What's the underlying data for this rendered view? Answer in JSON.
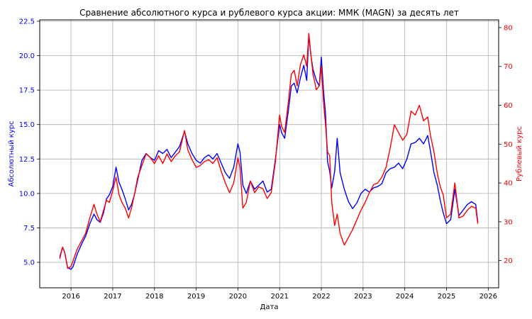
{
  "chart_data": {
    "type": "line",
    "title": "Сравнение абсолютного курса и рублевого курса акции: ММК (MAGN) за десять лет",
    "xlabel": "Дата",
    "ylabel_left": "Абсолютный курс",
    "ylabel_right": "Рублевый курс",
    "xlim": [
      2015.25,
      2026.25
    ],
    "ylim_left": [
      3.15,
      22.6
    ],
    "ylim_right": [
      13,
      82
    ],
    "xticks": [
      2016,
      2017,
      2018,
      2019,
      2020,
      2021,
      2022,
      2023,
      2024,
      2025,
      2026
    ],
    "xtick_labels": [
      "2016",
      "2017",
      "2018",
      "2019",
      "2020",
      "2021",
      "2022",
      "2023",
      "2024",
      "2025",
      "2026"
    ],
    "yticks_left": [
      5.0,
      7.5,
      10.0,
      12.5,
      15.0,
      17.5,
      20.0,
      22.5
    ],
    "ytick_labels_left": [
      "5.0",
      "7.5",
      "10.0",
      "12.5",
      "15.0",
      "17.5",
      "20.0",
      "22.5"
    ],
    "yticks_right": [
      20,
      30,
      40,
      50,
      60,
      70,
      80
    ],
    "ytick_labels_right": [
      "20",
      "30",
      "40",
      "50",
      "60",
      "70",
      "80"
    ],
    "grid": true,
    "series": [
      {
        "axis": "left",
        "color": "#0000ff",
        "x": [
          2015.73,
          2015.8,
          2015.85,
          2015.92,
          2016.0,
          2016.05,
          2016.15,
          2016.25,
          2016.35,
          2016.45,
          2016.55,
          2016.62,
          2016.7,
          2016.78,
          2016.85,
          2016.92,
          2017.0,
          2017.08,
          2017.15,
          2017.22,
          2017.3,
          2017.38,
          2017.45,
          2017.52,
          2017.6,
          2017.7,
          2017.8,
          2017.9,
          2018.0,
          2018.1,
          2018.2,
          2018.3,
          2018.4,
          2018.5,
          2018.6,
          2018.72,
          2018.8,
          2018.9,
          2019.0,
          2019.1,
          2019.2,
          2019.3,
          2019.4,
          2019.5,
          2019.6,
          2019.7,
          2019.8,
          2019.9,
          2020.0,
          2020.05,
          2020.12,
          2020.2,
          2020.3,
          2020.4,
          2020.5,
          2020.6,
          2020.7,
          2020.8,
          2020.9,
          2021.0,
          2021.05,
          2021.12,
          2021.2,
          2021.28,
          2021.35,
          2021.42,
          2021.5,
          2021.58,
          2021.65,
          2021.7,
          2021.75,
          2021.8,
          2021.88,
          2021.95,
          2022.0,
          2022.05,
          2022.1,
          2022.15,
          2022.2,
          2022.25,
          2022.32,
          2022.38,
          2022.45,
          2022.55,
          2022.65,
          2022.75,
          2022.85,
          2022.95,
          2023.05,
          2023.15,
          2023.25,
          2023.35,
          2023.45,
          2023.55,
          2023.65,
          2023.75,
          2023.85,
          2023.95,
          2024.05,
          2024.15,
          2024.25,
          2024.35,
          2024.45,
          2024.55,
          2024.62,
          2024.7,
          2024.78,
          2024.85,
          2024.92,
          2025.0,
          2025.1,
          2025.2,
          2025.3,
          2025.4,
          2025.5,
          2025.6,
          2025.7,
          2025.75
        ],
        "values": [
          5.4,
          6.1,
          5.7,
          4.6,
          4.5,
          4.7,
          5.6,
          6.3,
          6.9,
          7.8,
          8.5,
          8.1,
          7.9,
          8.6,
          9.6,
          9.9,
          10.5,
          11.9,
          10.8,
          10.3,
          9.6,
          8.8,
          9.2,
          9.9,
          11.0,
          12.4,
          12.9,
          12.6,
          12.4,
          13.1,
          12.9,
          13.2,
          12.6,
          13.0,
          13.4,
          14.5,
          13.6,
          12.9,
          12.4,
          12.2,
          12.6,
          12.8,
          12.5,
          12.9,
          12.2,
          11.5,
          11.1,
          11.9,
          13.6,
          13.0,
          10.6,
          10.0,
          10.9,
          10.3,
          10.6,
          10.9,
          10.1,
          10.3,
          12.5,
          15.0,
          14.4,
          14.0,
          15.8,
          17.8,
          18.0,
          17.3,
          18.4,
          19.3,
          18.2,
          21.5,
          20.0,
          19.0,
          18.2,
          17.8,
          19.9,
          17.5,
          15.8,
          12.3,
          11.6,
          10.4,
          11.6,
          14.0,
          11.5,
          10.3,
          9.4,
          8.9,
          9.3,
          10.0,
          10.3,
          10.1,
          10.4,
          10.5,
          10.7,
          11.5,
          11.8,
          11.9,
          12.2,
          11.8,
          12.5,
          13.6,
          13.7,
          14.0,
          13.6,
          14.2,
          13.0,
          11.5,
          10.6,
          9.5,
          8.6,
          7.8,
          8.1,
          10.3,
          8.4,
          8.8,
          9.2,
          9.4,
          9.2,
          7.9
        ]
      },
      {
        "axis": "right",
        "color": "#ff0000",
        "x": [
          2015.73,
          2015.8,
          2015.85,
          2015.92,
          2016.0,
          2016.05,
          2016.15,
          2016.25,
          2016.35,
          2016.45,
          2016.55,
          2016.62,
          2016.7,
          2016.78,
          2016.85,
          2016.92,
          2017.0,
          2017.08,
          2017.15,
          2017.22,
          2017.3,
          2017.38,
          2017.45,
          2017.52,
          2017.6,
          2017.7,
          2017.8,
          2017.9,
          2018.0,
          2018.1,
          2018.2,
          2018.3,
          2018.4,
          2018.5,
          2018.6,
          2018.72,
          2018.8,
          2018.9,
          2019.0,
          2019.1,
          2019.2,
          2019.3,
          2019.4,
          2019.5,
          2019.6,
          2019.7,
          2019.8,
          2019.9,
          2020.0,
          2020.05,
          2020.12,
          2020.2,
          2020.3,
          2020.4,
          2020.5,
          2020.6,
          2020.7,
          2020.8,
          2020.9,
          2021.0,
          2021.05,
          2021.12,
          2021.2,
          2021.28,
          2021.35,
          2021.42,
          2021.5,
          2021.58,
          2021.65,
          2021.7,
          2021.75,
          2021.8,
          2021.88,
          2021.95,
          2022.0,
          2022.05,
          2022.1,
          2022.15,
          2022.2,
          2022.25,
          2022.32,
          2022.38,
          2022.45,
          2022.55,
          2022.65,
          2022.75,
          2022.85,
          2022.95,
          2023.05,
          2023.15,
          2023.25,
          2023.35,
          2023.45,
          2023.55,
          2023.65,
          2023.75,
          2023.85,
          2023.95,
          2024.05,
          2024.15,
          2024.25,
          2024.35,
          2024.45,
          2024.55,
          2024.62,
          2024.7,
          2024.78,
          2024.85,
          2024.92,
          2025.0,
          2025.1,
          2025.2,
          2025.3,
          2025.4,
          2025.5,
          2025.6,
          2025.7,
          2025.75
        ],
        "values": [
          20.5,
          23.5,
          22.0,
          18.0,
          18.5,
          20.0,
          23.0,
          25.0,
          27.0,
          31.0,
          34.5,
          32.0,
          30.0,
          33.0,
          35.5,
          35.0,
          38.0,
          41.5,
          37.0,
          35.0,
          33.5,
          31.0,
          33.5,
          37.0,
          41.5,
          44.5,
          47.5,
          46.5,
          45.0,
          47.0,
          45.0,
          47.5,
          45.5,
          47.0,
          48.0,
          53.5,
          48.5,
          46.0,
          44.0,
          44.5,
          45.5,
          46.0,
          45.0,
          46.5,
          43.0,
          40.0,
          37.5,
          40.0,
          46.5,
          44.0,
          33.5,
          35.0,
          40.5,
          37.5,
          39.0,
          38.5,
          36.0,
          37.5,
          45.5,
          57.5,
          54.5,
          53.0,
          60.0,
          68.0,
          69.0,
          65.0,
          70.5,
          73.0,
          70.0,
          78.5,
          73.0,
          68.0,
          64.0,
          65.0,
          70.0,
          61.0,
          55.0,
          48.0,
          47.0,
          35.0,
          29.0,
          32.0,
          27.0,
          24.0,
          26.0,
          28.0,
          30.5,
          33.0,
          35.0,
          37.5,
          39.5,
          40.0,
          41.5,
          44.0,
          49.0,
          55.0,
          53.0,
          51.0,
          52.5,
          58.5,
          57.5,
          60.0,
          56.0,
          57.0,
          52.0,
          48.0,
          42.5,
          39.0,
          37.0,
          31.0,
          32.0,
          40.0,
          31.0,
          31.5,
          33.0,
          34.0,
          33.5,
          29.5
        ]
      }
    ]
  }
}
